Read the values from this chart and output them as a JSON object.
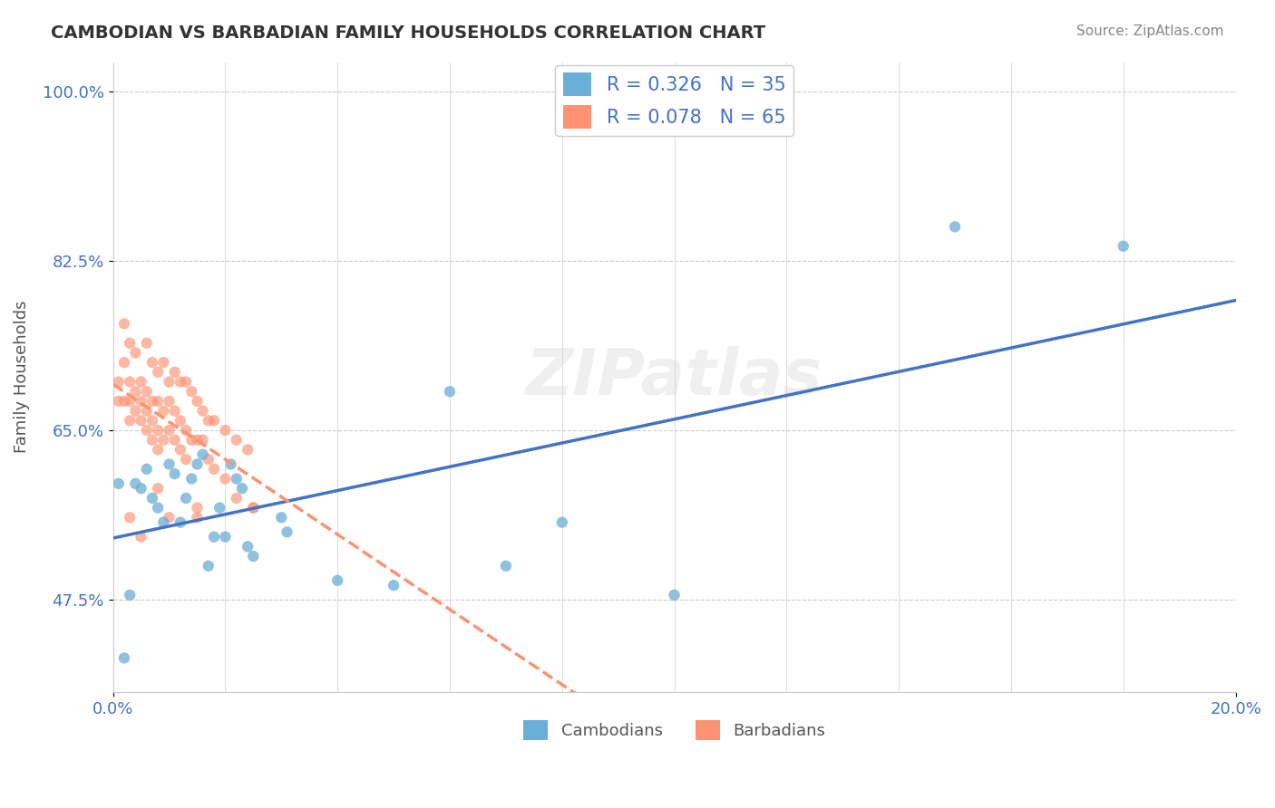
{
  "title": "CAMBODIAN VS BARBADIAN FAMILY HOUSEHOLDS CORRELATION CHART",
  "source_text": "Source: ZipAtlas.com",
  "xlabel": "",
  "ylabel": "Family Households",
  "xlim": [
    0.0,
    0.2
  ],
  "ylim": [
    0.38,
    1.03
  ],
  "xtick_labels": [
    "0.0%",
    "20.0%"
  ],
  "xtick_vals": [
    0.0,
    0.2
  ],
  "ytick_labels": [
    "47.5%",
    "65.0%",
    "82.5%",
    "100.0%"
  ],
  "ytick_vals": [
    0.475,
    0.65,
    0.825,
    1.0
  ],
  "cambodian_color": "#6baed6",
  "barbadian_color": "#fc9272",
  "cambodian_label": "Cambodians",
  "barbadian_label": "Barbadians",
  "cambodian_R": 0.326,
  "cambodian_N": 35,
  "barbadian_R": 0.078,
  "barbadian_N": 65,
  "legend_R_label_cambodian": "R = 0.326   N = 35",
  "legend_R_label_barbadian": "R = 0.078   N = 65",
  "watermark": "ZIPatlas",
  "background_color": "#ffffff",
  "grid_color": "#cccccc",
  "cambodian_points": [
    [
      0.001,
      0.595
    ],
    [
      0.002,
      0.415
    ],
    [
      0.003,
      0.48
    ],
    [
      0.004,
      0.595
    ],
    [
      0.005,
      0.59
    ],
    [
      0.006,
      0.61
    ],
    [
      0.007,
      0.58
    ],
    [
      0.008,
      0.57
    ],
    [
      0.009,
      0.555
    ],
    [
      0.01,
      0.615
    ],
    [
      0.011,
      0.605
    ],
    [
      0.012,
      0.555
    ],
    [
      0.013,
      0.58
    ],
    [
      0.014,
      0.6
    ],
    [
      0.015,
      0.615
    ],
    [
      0.016,
      0.625
    ],
    [
      0.017,
      0.51
    ],
    [
      0.018,
      0.54
    ],
    [
      0.019,
      0.57
    ],
    [
      0.02,
      0.54
    ],
    [
      0.021,
      0.615
    ],
    [
      0.022,
      0.6
    ],
    [
      0.023,
      0.59
    ],
    [
      0.024,
      0.53
    ],
    [
      0.025,
      0.52
    ],
    [
      0.03,
      0.56
    ],
    [
      0.031,
      0.545
    ],
    [
      0.04,
      0.495
    ],
    [
      0.05,
      0.49
    ],
    [
      0.06,
      0.69
    ],
    [
      0.07,
      0.51
    ],
    [
      0.08,
      0.555
    ],
    [
      0.1,
      0.48
    ],
    [
      0.15,
      0.86
    ],
    [
      0.18,
      0.84
    ]
  ],
  "barbadian_points": [
    [
      0.001,
      0.7
    ],
    [
      0.001,
      0.68
    ],
    [
      0.002,
      0.72
    ],
    [
      0.002,
      0.68
    ],
    [
      0.003,
      0.7
    ],
    [
      0.003,
      0.68
    ],
    [
      0.003,
      0.66
    ],
    [
      0.004,
      0.69
    ],
    [
      0.004,
      0.67
    ],
    [
      0.005,
      0.7
    ],
    [
      0.005,
      0.68
    ],
    [
      0.005,
      0.66
    ],
    [
      0.006,
      0.69
    ],
    [
      0.006,
      0.67
    ],
    [
      0.006,
      0.65
    ],
    [
      0.007,
      0.68
    ],
    [
      0.007,
      0.66
    ],
    [
      0.007,
      0.64
    ],
    [
      0.008,
      0.68
    ],
    [
      0.008,
      0.65
    ],
    [
      0.008,
      0.63
    ],
    [
      0.009,
      0.67
    ],
    [
      0.009,
      0.64
    ],
    [
      0.01,
      0.68
    ],
    [
      0.01,
      0.65
    ],
    [
      0.011,
      0.67
    ],
    [
      0.011,
      0.64
    ],
    [
      0.012,
      0.66
    ],
    [
      0.012,
      0.63
    ],
    [
      0.013,
      0.65
    ],
    [
      0.013,
      0.62
    ],
    [
      0.014,
      0.64
    ],
    [
      0.015,
      0.64
    ],
    [
      0.015,
      0.57
    ],
    [
      0.016,
      0.64
    ],
    [
      0.017,
      0.62
    ],
    [
      0.018,
      0.61
    ],
    [
      0.02,
      0.6
    ],
    [
      0.022,
      0.58
    ],
    [
      0.025,
      0.57
    ],
    [
      0.002,
      0.76
    ],
    [
      0.003,
      0.74
    ],
    [
      0.004,
      0.73
    ],
    [
      0.006,
      0.74
    ],
    [
      0.007,
      0.72
    ],
    [
      0.008,
      0.71
    ],
    [
      0.009,
      0.72
    ],
    [
      0.01,
      0.7
    ],
    [
      0.011,
      0.71
    ],
    [
      0.012,
      0.7
    ],
    [
      0.013,
      0.7
    ],
    [
      0.014,
      0.69
    ],
    [
      0.015,
      0.68
    ],
    [
      0.016,
      0.67
    ],
    [
      0.017,
      0.66
    ],
    [
      0.018,
      0.66
    ],
    [
      0.02,
      0.65
    ],
    [
      0.022,
      0.64
    ],
    [
      0.024,
      0.63
    ],
    [
      0.025,
      0.57
    ],
    [
      0.003,
      0.56
    ],
    [
      0.005,
      0.54
    ],
    [
      0.008,
      0.59
    ],
    [
      0.01,
      0.56
    ],
    [
      0.015,
      0.56
    ]
  ]
}
